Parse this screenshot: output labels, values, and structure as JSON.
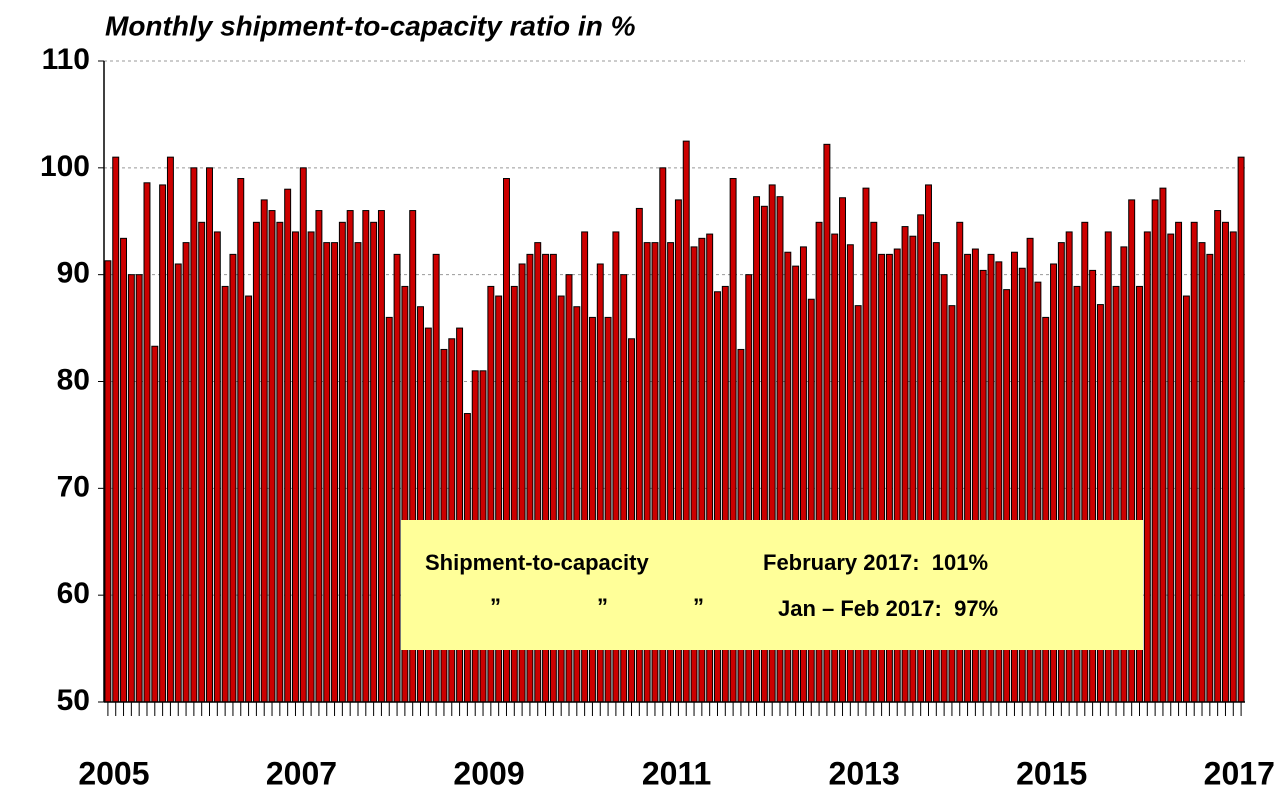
{
  "chart_data": {
    "type": "bar",
    "title": "Monthly shipment-to-capacity ratio in %",
    "color": "#cc0000",
    "categories": [
      "2005",
      null,
      null,
      null,
      null,
      null,
      null,
      null,
      null,
      null,
      null,
      null,
      null,
      null,
      null,
      null,
      null,
      null,
      null,
      null,
      null,
      null,
      null,
      null,
      "2007",
      null,
      null,
      null,
      null,
      null,
      null,
      null,
      null,
      null,
      null,
      null,
      null,
      null,
      null,
      null,
      null,
      null,
      null,
      null,
      null,
      null,
      null,
      null,
      "2009",
      null,
      null,
      null,
      null,
      null,
      null,
      null,
      null,
      null,
      null,
      null,
      null,
      null,
      null,
      null,
      null,
      null,
      null,
      null,
      null,
      null,
      null,
      null,
      "2011",
      null,
      null,
      null,
      null,
      null,
      null,
      null,
      null,
      null,
      null,
      null,
      null,
      null,
      null,
      null,
      null,
      null,
      null,
      null,
      null,
      null,
      null,
      null,
      "2013",
      null,
      null,
      null,
      null,
      null,
      null,
      null,
      null,
      null,
      null,
      null,
      null,
      null,
      null,
      null,
      null,
      null,
      null,
      null,
      null,
      null,
      null,
      null,
      "2015",
      null,
      null,
      null,
      null,
      null,
      null,
      null,
      null,
      null,
      null,
      null,
      null,
      null,
      null,
      null,
      null,
      null,
      null,
      null,
      null,
      null,
      null,
      null,
      "2017",
      null
    ],
    "values": [
      91.3,
      101,
      93.4,
      90,
      90,
      98.6,
      83.3,
      98.4,
      101,
      91,
      93,
      100,
      94.9,
      100,
      94,
      88.9,
      91.9,
      99,
      88,
      94.9,
      97,
      96,
      94.9,
      98,
      94,
      100,
      94,
      96,
      93,
      93,
      94.9,
      96,
      93,
      96,
      94.9,
      96,
      86,
      91.9,
      88.9,
      96,
      87,
      85,
      91.9,
      83,
      84,
      85,
      77,
      81,
      81,
      88.9,
      88,
      99,
      88.9,
      91,
      91.9,
      93,
      91.9,
      91.9,
      88,
      90,
      87,
      94,
      86,
      91,
      86,
      94,
      90,
      84,
      96.2,
      93,
      93,
      100,
      93,
      97,
      102.5,
      92.6,
      93.4,
      93.8,
      88.4,
      88.9,
      99,
      83,
      90,
      97.3,
      96.4,
      98.4,
      97.3,
      92.1,
      90.8,
      92.6,
      87.7,
      94.9,
      102.2,
      93.8,
      97.2,
      92.8,
      87.1,
      98.1,
      94.9,
      91.9,
      91.9,
      92.4,
      94.5,
      93.6,
      95.6,
      98.4,
      93,
      90,
      87.1,
      94.9,
      91.9,
      92.4,
      90.4,
      91.9,
      91.2,
      88.6,
      92.1,
      90.6,
      93.4,
      89.3,
      86,
      91,
      93,
      94,
      88.9,
      94.9,
      90.4,
      87.2,
      94,
      88.9,
      92.6,
      97,
      88.9,
      94,
      97,
      98.1,
      93.8,
      94.9,
      88,
      94.9,
      93,
      91.9,
      96,
      94.9,
      94,
      101
    ],
    "ylim": [
      50,
      110
    ],
    "yticks": [
      50,
      60,
      70,
      80,
      90,
      100,
      110
    ],
    "grid": true,
    "annotations": [
      "Shipment-to-capacity",
      "February 2017:  101%",
      "”",
      "”",
      "”",
      "Jan – Feb 2017:  97%"
    ]
  }
}
